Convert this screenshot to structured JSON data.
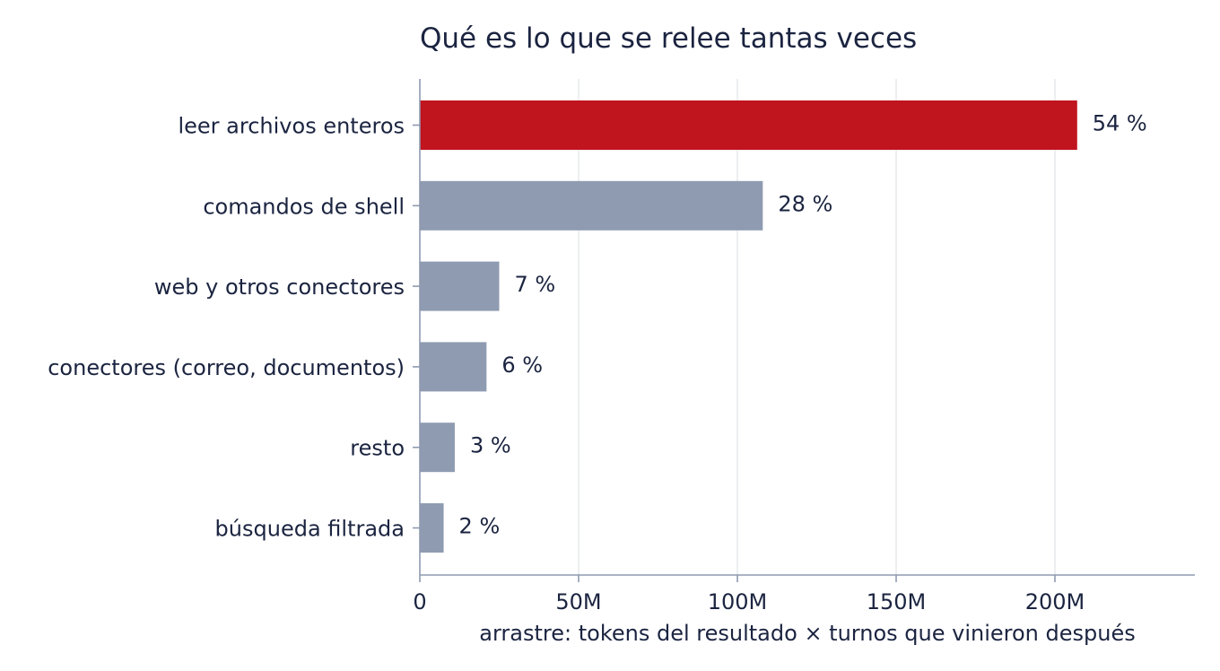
{
  "chart_data": {
    "type": "bar",
    "orientation": "horizontal",
    "title": "Qué es lo que se relee tantas veces",
    "xlabel": "arrastre: tokens del resultado × turnos que vinieron después",
    "ylabel": "",
    "xlim": [
      0,
      245
    ],
    "x_unit": "M",
    "x_ticks": [
      0,
      50,
      100,
      150,
      200
    ],
    "x_tick_labels": [
      "0",
      "50M",
      "100M",
      "150M",
      "200M"
    ],
    "grid": "vertical",
    "legend": "none",
    "categories": [
      "leer archivos enteros",
      "comandos de shell",
      "web y otros conectores",
      "conectores (correo, documentos)",
      "resto",
      "búsqueda filtrada"
    ],
    "values": [
      207,
      108,
      25,
      21,
      11,
      7.5
    ],
    "data_labels": [
      "54 %",
      "28 %",
      "7 %",
      "6 %",
      "3 %",
      "2 %"
    ],
    "colors": {
      "highlight": "#c0141f",
      "default": "#8f9bb1",
      "text": "#1b2440",
      "axis": "#8f9ab0",
      "grid": "#e4e6ea"
    },
    "highlight_index": 0
  }
}
